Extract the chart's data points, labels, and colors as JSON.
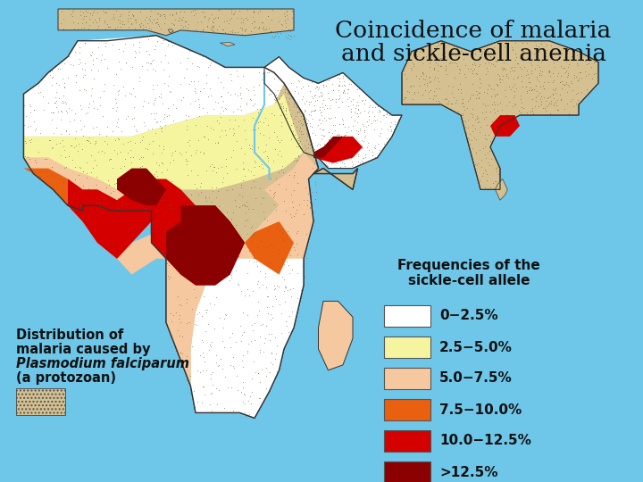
{
  "title_line1": "Coincidence of malaria",
  "title_line2": "and sickle-cell anemia",
  "title_fontsize": 19,
  "background_color": "#6ec6e8",
  "land_base_color": "#c8b882",
  "stipple_color": "#888866",
  "legend_title": "Frequencies of the\nsickle-cell allele",
  "legend_title_fontsize": 11,
  "legend_items": [
    {
      "label": "0−2.5%",
      "color": "#ffffff",
      "edgecolor": "#555555"
    },
    {
      "label": "2.5−5.0%",
      "color": "#f5f5a0",
      "edgecolor": "#555555"
    },
    {
      "label": "5.0−7.5%",
      "color": "#f5c8a0",
      "edgecolor": "#555555"
    },
    {
      "label": "7.5−10.0%",
      "color": "#e86010",
      "edgecolor": "#555555"
    },
    {
      "label": "10.0−12.5%",
      "color": "#d40000",
      "edgecolor": "#555555"
    },
    {
      "label": ">12.5%",
      "color": "#8b0000",
      "edgecolor": "#555555"
    }
  ],
  "distribution_label_fontsize": 10.5
}
